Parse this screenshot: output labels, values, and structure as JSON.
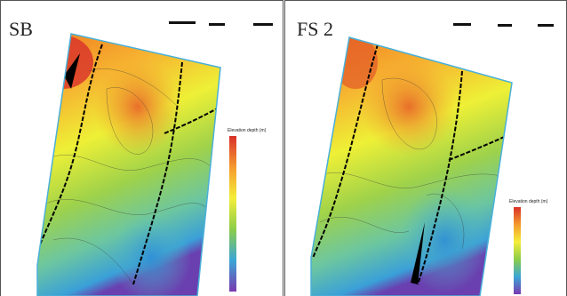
{
  "panels": [
    {
      "label": "SB",
      "legend_title": "Elevation depth (m)"
    },
    {
      "label": "FS 2",
      "legend_title": "Elevation depth (m)"
    }
  ]
}
